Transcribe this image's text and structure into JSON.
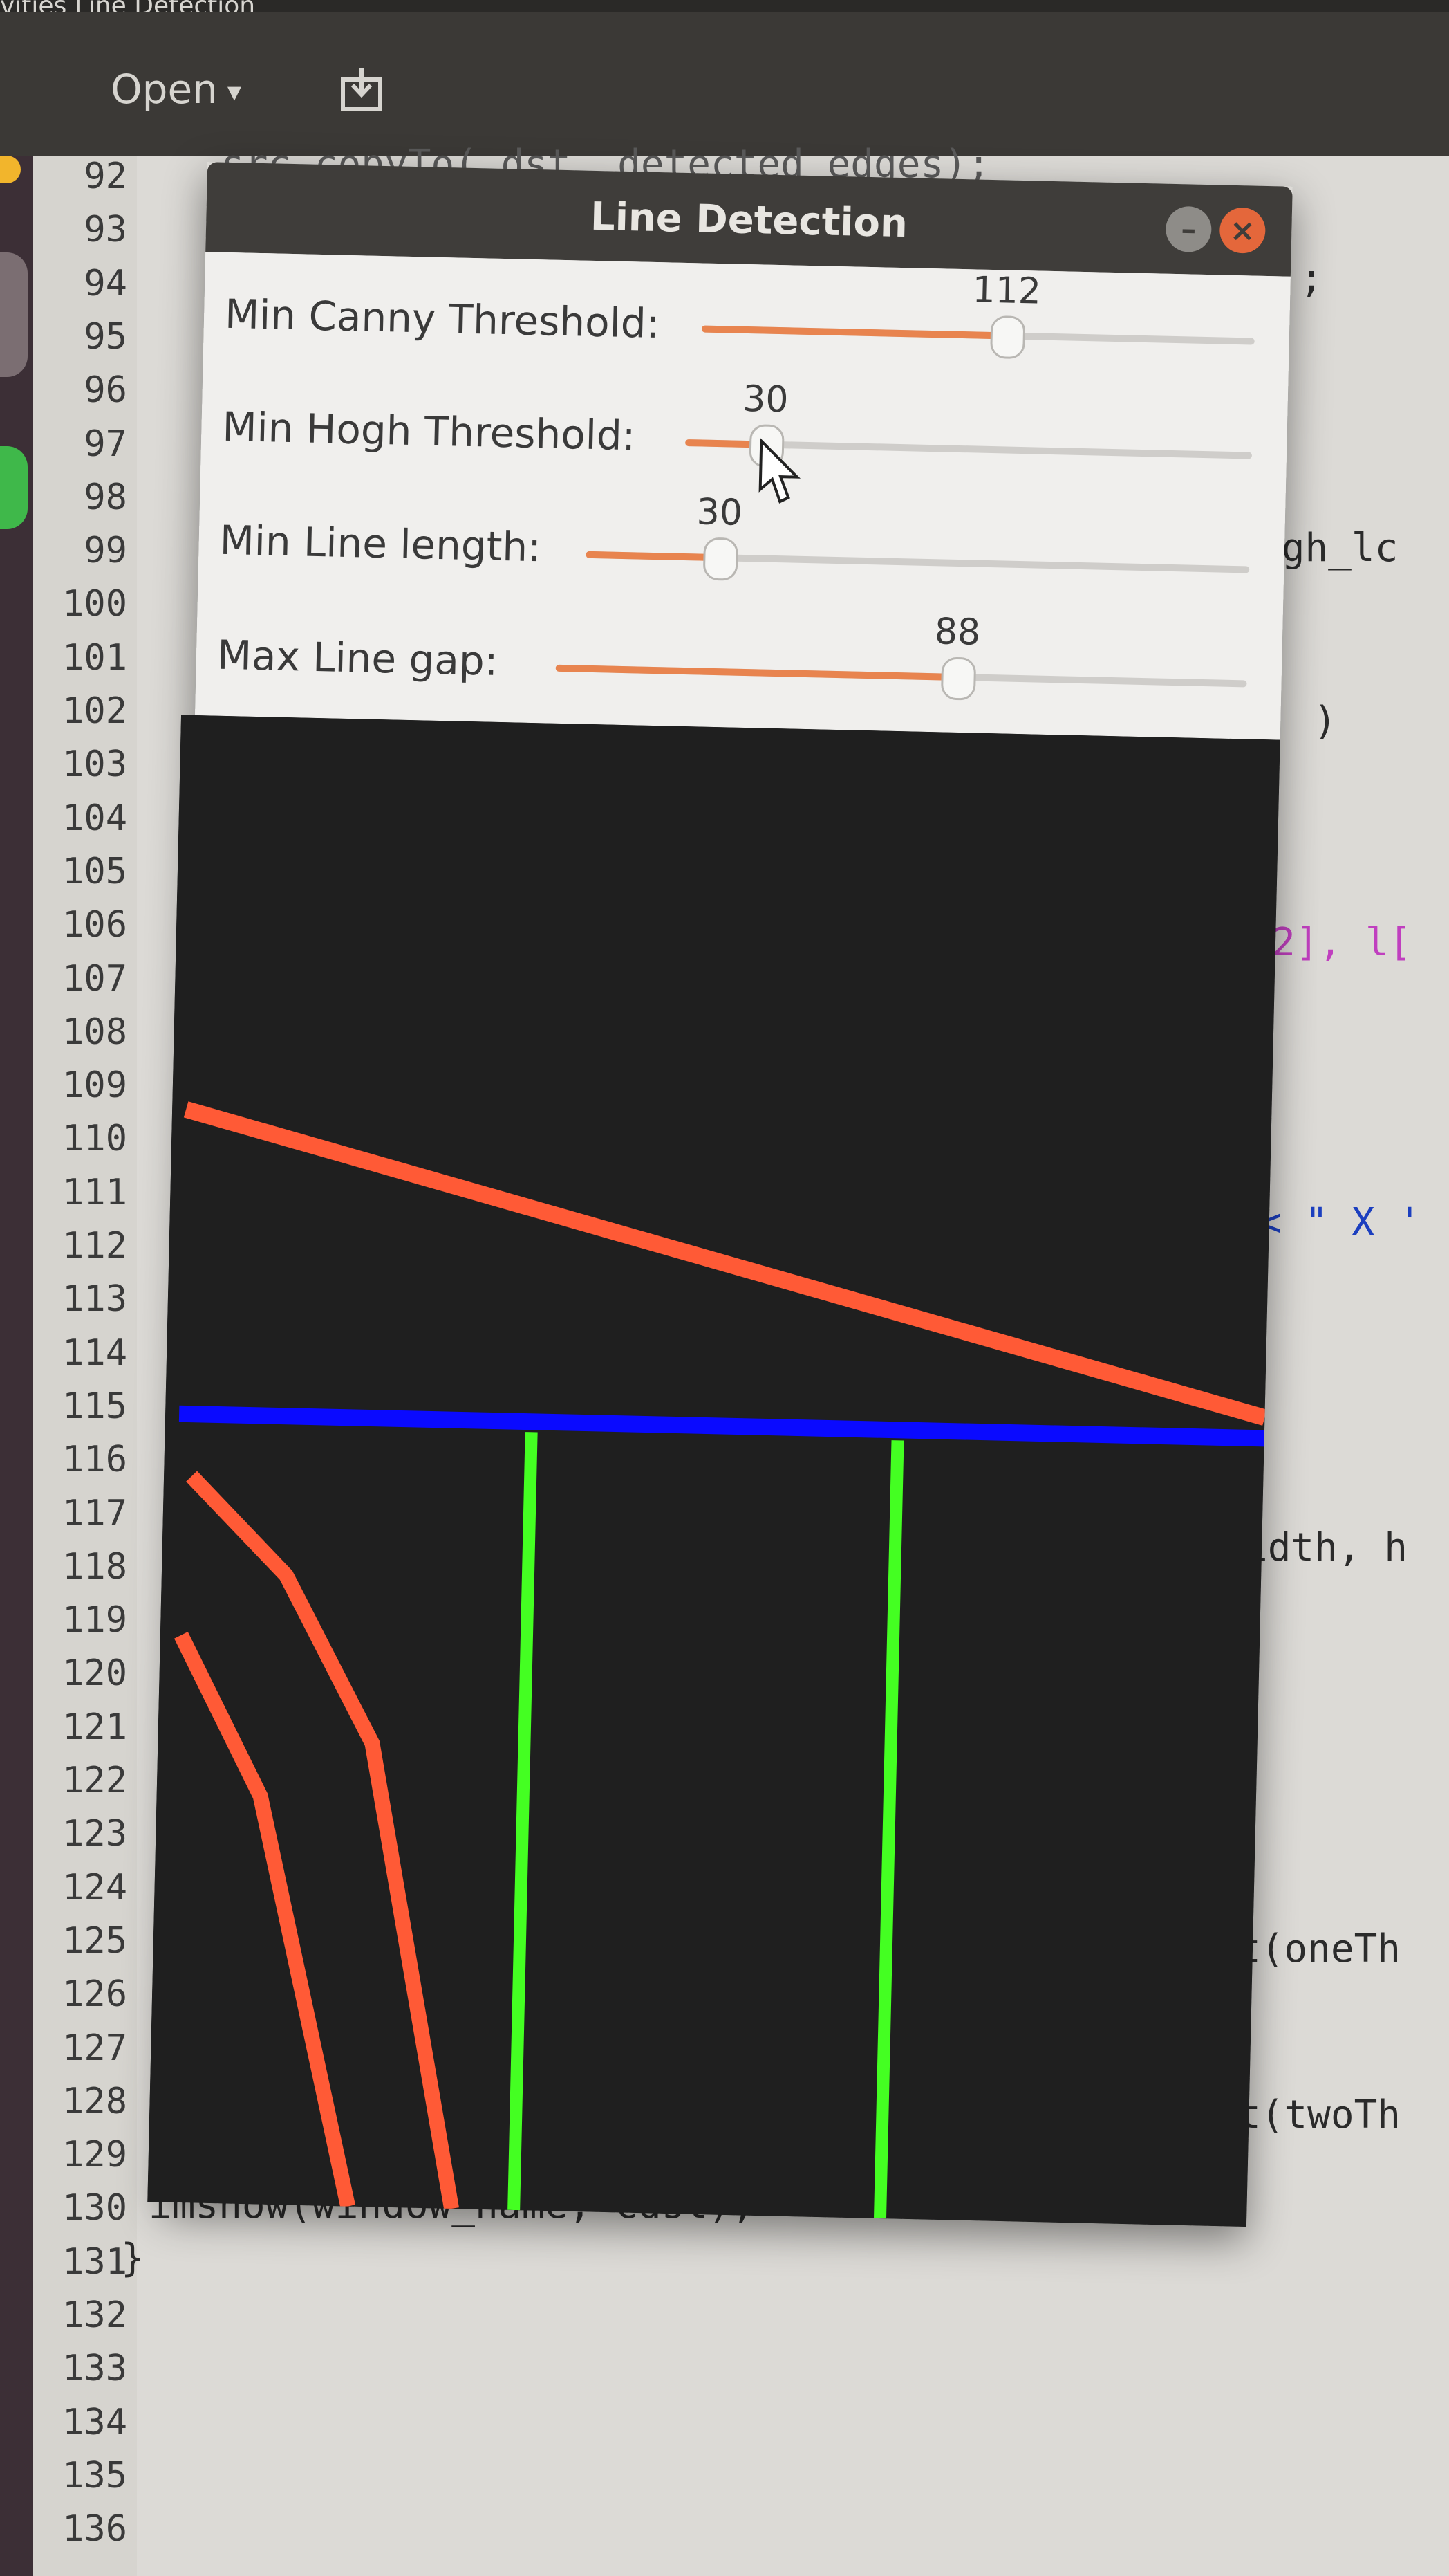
{
  "editor": {
    "window_title_fragment": "vities  Line Detection",
    "open_label": "Open",
    "line_numbers": [
      "92",
      "93",
      "94",
      "95",
      "96",
      "97",
      "98",
      "99",
      "100",
      "101",
      "102",
      "103",
      "104",
      "105",
      "106",
      "107",
      "108",
      "109",
      "110",
      "111",
      "112",
      "113",
      "114",
      "115",
      "116",
      "117",
      "118",
      "119",
      "120",
      "121",
      "122",
      "123",
      "124",
      "125",
      "126",
      "127",
      "128",
      "129",
      "130",
      "131",
      "132",
      "133",
      "134",
      "135",
      "136"
    ],
    "code_line_92": "src.copyTo( dst, detected_edges);",
    "code_line_94_suffix": ";",
    "code_line_99_suffix": "ugh_lc",
    "code_line_102_suffix": ")",
    "code_line_107_suffix": "2], l[",
    "code_line_112_suffix": "< \" X '",
    "code_line_118_suffix": "idth, h",
    "code_line_125_suffix": "t(oneTh",
    "code_line_128_suffix": "t(twoTh",
    "code_line_130": "imshow(window_name, cdst);",
    "code_line_131": "}"
  },
  "dialog": {
    "title": "Line Detection",
    "minimize_glyph": "–",
    "close_glyph": "×",
    "sliders": [
      {
        "label": "Min Canny Threshold:",
        "value": "112",
        "fraction": 0.55
      },
      {
        "label": "Min Hogh Threshold:",
        "value": "30",
        "fraction": 0.14
      },
      {
        "label": "Min Line length:",
        "value": "30",
        "fraction": 0.2
      },
      {
        "label": "Max Line gap:",
        "value": "88",
        "fraction": 0.58
      }
    ]
  },
  "colors": {
    "accent": "#e8844f",
    "red_lines": "#ff5a36",
    "blue_line": "#0a0aff",
    "green_lines": "#44ff22",
    "canvas_bg": "#1f1f1f"
  },
  "icons": [
    "save-icon",
    "close-icon",
    "minimize-icon",
    "mouse-pointer-icon",
    "caret-down-icon"
  ]
}
